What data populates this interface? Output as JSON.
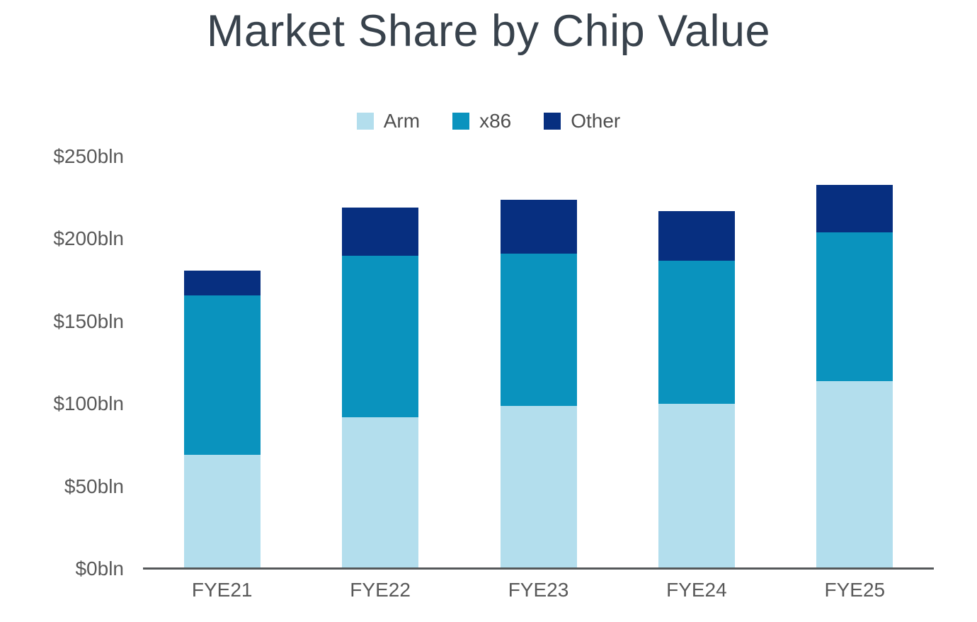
{
  "chart_data": {
    "type": "bar",
    "stacked": true,
    "title": "Market Share by Chip Value",
    "categories": [
      "FYE21",
      "FYE22",
      "FYE23",
      "FYE24",
      "FYE25"
    ],
    "series": [
      {
        "name": "Arm",
        "color": "#b3deed",
        "values": [
          69,
          92,
          99,
          100,
          114
        ]
      },
      {
        "name": "x86",
        "color": "#0a93be",
        "values": [
          97,
          98,
          92,
          87,
          90
        ]
      },
      {
        "name": "Other",
        "color": "#072f80",
        "values": [
          15,
          29,
          33,
          30,
          29
        ]
      }
    ],
    "totals": [
      181,
      219,
      224,
      217,
      233
    ],
    "unit": "bln USD",
    "ytick_labels": [
      "$0bln",
      "$50bln",
      "$100bln",
      "$150bln",
      "$200bln",
      "$250bln"
    ],
    "ytick_values": [
      0,
      50,
      100,
      150,
      200,
      250
    ],
    "ylim": [
      0,
      250
    ],
    "grid": false,
    "legend_position": "top-center"
  },
  "colors": {
    "title": "#38424c",
    "tick_label": "#595959",
    "legend_label": "#4f4f4f",
    "axis_line": "#55585a",
    "background": "#ffffff"
  }
}
